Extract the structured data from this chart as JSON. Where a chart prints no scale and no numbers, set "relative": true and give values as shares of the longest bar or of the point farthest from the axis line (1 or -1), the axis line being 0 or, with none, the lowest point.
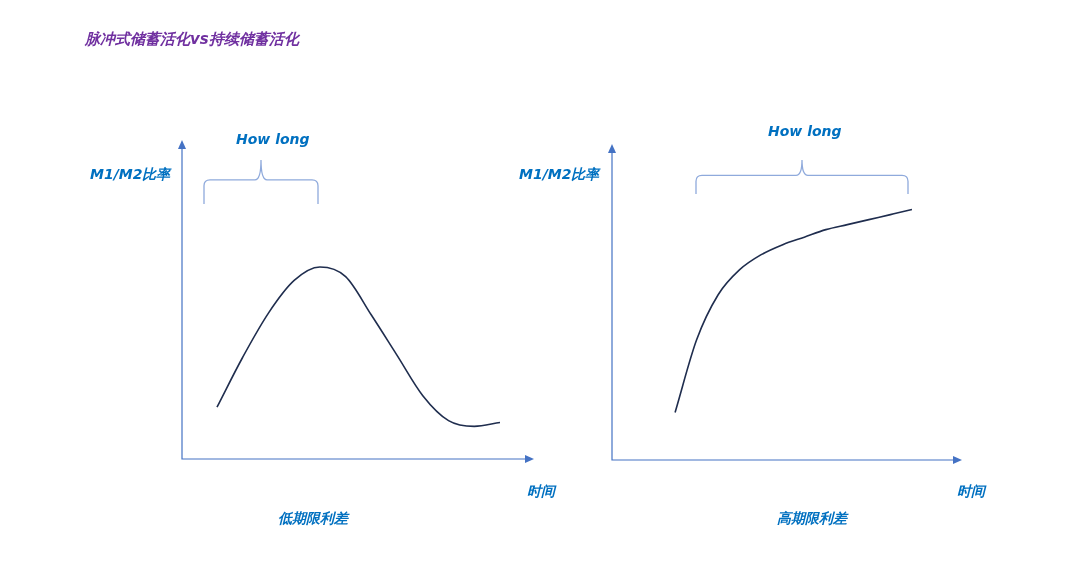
{
  "chart_data": [
    {
      "type": "line",
      "title": "脉冲式储蓄活化vs持续储蓄活化",
      "subtitle": "低期限利差",
      "xlabel": "时间",
      "ylabel": "M1/M2比率",
      "annotations": [
        "How long"
      ],
      "relative": true,
      "marker": "none",
      "categories": [
        null,
        null,
        null,
        null,
        null,
        null,
        null,
        null,
        null,
        null,
        null,
        null
      ],
      "series": [
        {
          "color": "#1f2d4e",
          "values": [
            0.27,
            0.53,
            0.76,
            0.93,
            1,
            0.95,
            0.75,
            0.54,
            0.33,
            0.2,
            0.17,
            0.19
          ]
        }
      ]
    },
    {
      "type": "line",
      "subtitle": "高期限利差",
      "xlabel": "时间",
      "ylabel": "M1/M2比率",
      "annotations": [
        "How long"
      ],
      "relative": true,
      "marker": "none",
      "categories": [
        null,
        null,
        null,
        null,
        null,
        null,
        null,
        null,
        null,
        null,
        null,
        null
      ],
      "series": [
        {
          "color": "#1f2d4e",
          "values": [
            0.19,
            0.48,
            0.66,
            0.76,
            0.82,
            0.86,
            0.89,
            0.92,
            0.94,
            0.96,
            0.98,
            1
          ]
        }
      ]
    }
  ]
}
